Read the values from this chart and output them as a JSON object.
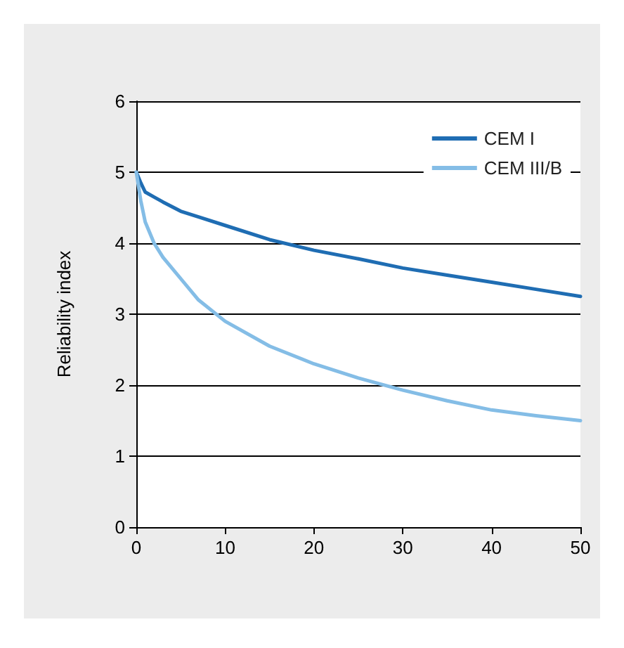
{
  "chart_data": {
    "type": "line",
    "ylabel": "Reliability index",
    "x": [
      0,
      0.5,
      1,
      2,
      3,
      5,
      7,
      10,
      15,
      20,
      25,
      30,
      35,
      40,
      45,
      50
    ],
    "series": [
      {
        "name": "CEM I",
        "color": "#1f6db3",
        "values": [
          5.0,
          4.85,
          4.72,
          4.65,
          4.58,
          4.45,
          4.37,
          4.25,
          4.05,
          3.9,
          3.78,
          3.65,
          3.55,
          3.45,
          3.35,
          3.25
        ]
      },
      {
        "name": "CEM III/B",
        "color": "#84bde6",
        "values": [
          5.0,
          4.6,
          4.3,
          4.0,
          3.8,
          3.5,
          3.2,
          2.9,
          2.55,
          2.3,
          2.1,
          1.93,
          1.78,
          1.65,
          1.57,
          1.5
        ]
      }
    ],
    "xlim": [
      0,
      50
    ],
    "xticks": [
      0,
      10,
      20,
      30,
      40,
      50
    ],
    "ylim": [
      0,
      6
    ],
    "yticks": [
      0,
      1,
      2,
      3,
      4,
      5,
      6
    ],
    "grid": "y",
    "legend": "top right",
    "marker": "none",
    "line_style": "solid"
  }
}
